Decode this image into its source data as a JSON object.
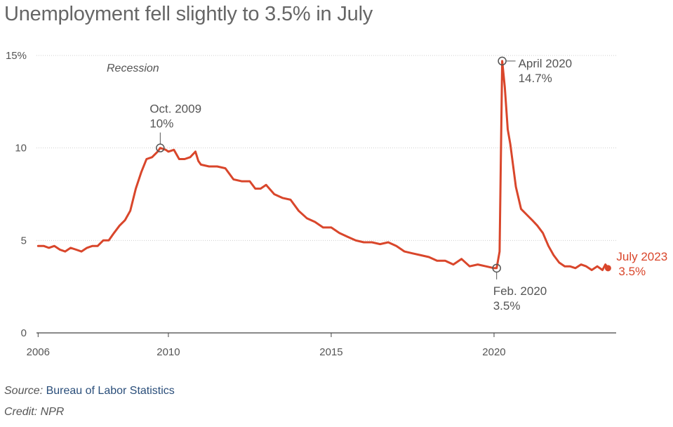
{
  "title": "Unemployment fell slightly to 3.5% in July",
  "source": {
    "prefix": "Source:",
    "name": "Bureau of Labor Statistics"
  },
  "credit": "Credit: NPR",
  "colors": {
    "line": "#d9462b",
    "grid": "#cfcfcf",
    "text": "#555555",
    "marker": "#555555"
  },
  "chart_data": {
    "type": "line",
    "title": "Unemployment fell slightly to 3.5% in July",
    "xlabel": "",
    "ylabel": "",
    "xlim": [
      2005.95,
      2023.75
    ],
    "ylim": [
      0,
      15
    ],
    "x_ticks": [
      {
        "value": 2006,
        "label": "2006"
      },
      {
        "value": 2010,
        "label": "2010"
      },
      {
        "value": 2015,
        "label": "2015"
      },
      {
        "value": 2020,
        "label": "2020"
      }
    ],
    "y_ticks": [
      {
        "value": 0,
        "label": "0"
      },
      {
        "value": 5,
        "label": "5"
      },
      {
        "value": 10,
        "label": "10"
      },
      {
        "value": 15,
        "label": "15%"
      }
    ],
    "grid": true,
    "recession_label": "Recession",
    "series": [
      {
        "name": "",
        "points": [
          [
            2006.0,
            4.7
          ],
          [
            2006.17,
            4.7
          ],
          [
            2006.33,
            4.6
          ],
          [
            2006.5,
            4.7
          ],
          [
            2006.67,
            4.5
          ],
          [
            2006.83,
            4.4
          ],
          [
            2007.0,
            4.6
          ],
          [
            2007.17,
            4.5
          ],
          [
            2007.33,
            4.4
          ],
          [
            2007.5,
            4.6
          ],
          [
            2007.67,
            4.7
          ],
          [
            2007.83,
            4.7
          ],
          [
            2008.0,
            5.0
          ],
          [
            2008.17,
            5.0
          ],
          [
            2008.33,
            5.4
          ],
          [
            2008.5,
            5.8
          ],
          [
            2008.67,
            6.1
          ],
          [
            2008.83,
            6.6
          ],
          [
            2009.0,
            7.8
          ],
          [
            2009.17,
            8.7
          ],
          [
            2009.33,
            9.4
          ],
          [
            2009.5,
            9.5
          ],
          [
            2009.67,
            9.8
          ],
          [
            2009.75,
            10.0
          ],
          [
            2009.92,
            9.9
          ],
          [
            2010.0,
            9.8
          ],
          [
            2010.17,
            9.9
          ],
          [
            2010.33,
            9.4
          ],
          [
            2010.5,
            9.4
          ],
          [
            2010.67,
            9.5
          ],
          [
            2010.83,
            9.8
          ],
          [
            2010.92,
            9.3
          ],
          [
            2011.0,
            9.1
          ],
          [
            2011.25,
            9.0
          ],
          [
            2011.5,
            9.0
          ],
          [
            2011.75,
            8.9
          ],
          [
            2012.0,
            8.3
          ],
          [
            2012.25,
            8.2
          ],
          [
            2012.5,
            8.2
          ],
          [
            2012.67,
            7.8
          ],
          [
            2012.83,
            7.8
          ],
          [
            2013.0,
            8.0
          ],
          [
            2013.25,
            7.5
          ],
          [
            2013.5,
            7.3
          ],
          [
            2013.75,
            7.2
          ],
          [
            2014.0,
            6.6
          ],
          [
            2014.25,
            6.2
          ],
          [
            2014.5,
            6.0
          ],
          [
            2014.75,
            5.7
          ],
          [
            2015.0,
            5.7
          ],
          [
            2015.25,
            5.4
          ],
          [
            2015.5,
            5.2
          ],
          [
            2015.75,
            5.0
          ],
          [
            2016.0,
            4.9
          ],
          [
            2016.25,
            4.9
          ],
          [
            2016.5,
            4.8
          ],
          [
            2016.75,
            4.9
          ],
          [
            2017.0,
            4.7
          ],
          [
            2017.25,
            4.4
          ],
          [
            2017.5,
            4.3
          ],
          [
            2017.75,
            4.2
          ],
          [
            2018.0,
            4.1
          ],
          [
            2018.25,
            3.9
          ],
          [
            2018.5,
            3.9
          ],
          [
            2018.75,
            3.7
          ],
          [
            2019.0,
            4.0
          ],
          [
            2019.25,
            3.6
          ],
          [
            2019.5,
            3.7
          ],
          [
            2019.75,
            3.6
          ],
          [
            2020.0,
            3.5
          ],
          [
            2020.08,
            3.5
          ],
          [
            2020.17,
            4.4
          ],
          [
            2020.25,
            14.7
          ],
          [
            2020.33,
            13.3
          ],
          [
            2020.42,
            11.0
          ],
          [
            2020.5,
            10.2
          ],
          [
            2020.67,
            7.9
          ],
          [
            2020.83,
            6.7
          ],
          [
            2021.0,
            6.4
          ],
          [
            2021.17,
            6.1
          ],
          [
            2021.33,
            5.8
          ],
          [
            2021.5,
            5.4
          ],
          [
            2021.67,
            4.7
          ],
          [
            2021.83,
            4.2
          ],
          [
            2022.0,
            3.8
          ],
          [
            2022.17,
            3.6
          ],
          [
            2022.33,
            3.6
          ],
          [
            2022.5,
            3.5
          ],
          [
            2022.67,
            3.7
          ],
          [
            2022.83,
            3.6
          ],
          [
            2023.0,
            3.4
          ],
          [
            2023.17,
            3.6
          ],
          [
            2023.33,
            3.4
          ],
          [
            2023.42,
            3.7
          ],
          [
            2023.5,
            3.5
          ]
        ]
      }
    ],
    "annotations": [
      {
        "x": 2009.75,
        "y": 10.0,
        "lines": [
          "Oct. 2009",
          "10%"
        ],
        "highlight": false
      },
      {
        "x": 2020.25,
        "y": 14.7,
        "lines": [
          "April 2020",
          "14.7%"
        ],
        "highlight": false
      },
      {
        "x": 2020.08,
        "y": 3.5,
        "lines": [
          "Feb. 2020",
          "3.5%"
        ],
        "highlight": false
      },
      {
        "x": 2023.5,
        "y": 3.5,
        "lines": [
          "July 2023",
          "3.5%"
        ],
        "highlight": true
      }
    ]
  }
}
